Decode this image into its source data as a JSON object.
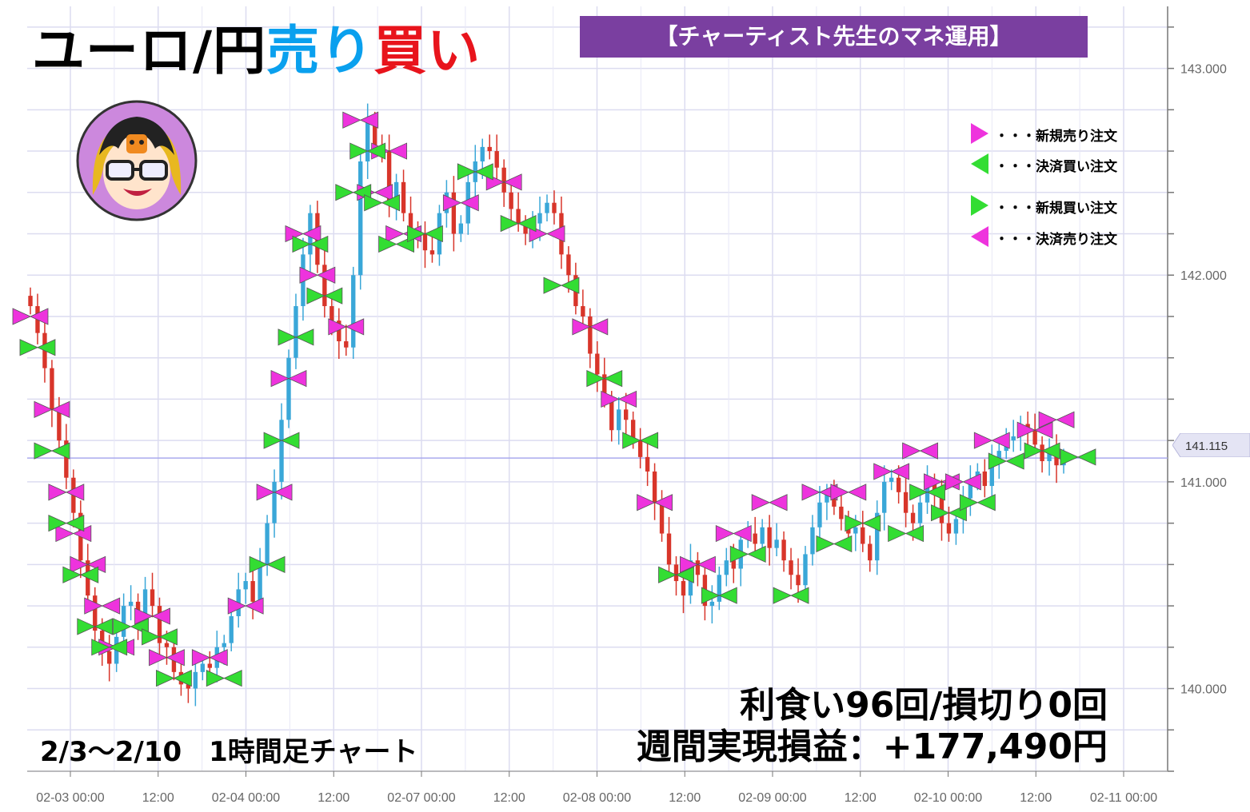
{
  "title": {
    "part1": "ユーロ/円",
    "part2": "売り",
    "part3": "買い"
  },
  "banner": "【チャーティスト先生のマネ運用】",
  "stats": {
    "line1": "利食い96回/損切り0回",
    "line2": "週間実現損益：+177,490円"
  },
  "period_label": "2/3～2/10　1時間足チャート",
  "legend": [
    {
      "label": "・・・新規売り注文",
      "marker": "right-triangle",
      "color": "#ee33dd"
    },
    {
      "label": "・・・決済買い注文",
      "marker": "left-triangle",
      "color": "#33dd33"
    },
    {
      "label": "・・・新規買い注文",
      "marker": "right-triangle",
      "color": "#33dd33"
    },
    {
      "label": "・・・決済売り注文",
      "marker": "left-triangle",
      "color": "#ee33dd"
    }
  ],
  "avatar": {
    "icon": "teacher-avatar-icon",
    "bg_color": "#cc88dd"
  },
  "colors": {
    "up": "#3aa7d8",
    "down": "#d8352a",
    "sell": "#ee33dd",
    "buy": "#33dd33",
    "current_line": "#aaaaee"
  },
  "chart_data": {
    "type": "candlestick",
    "xlabels": [
      "02-03 00:00",
      "12:00",
      "02-04 00:00",
      "12:00",
      "02-07 00:00",
      "12:00",
      "02-08 00:00",
      "12:00",
      "02-09 00:00",
      "12:00",
      "02-10 00:00",
      "12:00",
      "02-11 00:00"
    ],
    "ylabels": [
      "140.000",
      "141.000",
      "142.000",
      "143.000"
    ],
    "y_ticks": [
      140.0,
      141.0,
      142.0,
      143.0
    ],
    "ylim": [
      139.6,
      143.3
    ],
    "current_price": 141.115,
    "current_price_label": "141.115",
    "x_start_hour": 0,
    "x_end_hour": 150,
    "session_breaks": [
      {
        "label_index": 4,
        "note": "weekend gap after 02-04"
      }
    ],
    "closes": [
      141.85,
      141.72,
      141.55,
      141.35,
      141.2,
      141.02,
      140.85,
      140.62,
      140.45,
      140.28,
      140.18,
      140.12,
      140.25,
      140.4,
      140.42,
      140.32,
      140.48,
      140.4,
      140.22,
      140.2,
      140.08,
      140.02,
      140.0,
      140.08,
      140.12,
      140.1,
      140.2,
      140.22,
      140.35,
      140.48,
      140.52,
      140.42,
      140.6,
      140.8,
      141.0,
      141.3,
      141.6,
      141.85,
      142.1,
      142.3,
      142.05,
      141.85,
      141.78,
      141.68,
      141.65,
      142.0,
      142.55,
      142.75,
      142.62,
      142.6,
      142.35,
      142.45,
      142.3,
      142.22,
      142.2,
      142.12,
      142.1,
      142.3,
      142.4,
      142.2,
      142.25,
      142.45,
      142.55,
      142.62,
      142.6,
      142.52,
      142.4,
      142.32,
      142.25,
      142.2,
      142.25,
      142.3,
      142.35,
      142.3,
      142.1,
      142.0,
      141.85,
      141.8,
      141.62,
      141.52,
      141.4,
      141.25,
      141.35,
      141.3,
      141.2,
      141.12,
      141.05,
      140.9,
      140.75,
      140.6,
      140.52,
      140.45,
      140.62,
      140.55,
      140.4,
      140.42,
      140.55,
      140.62,
      140.58,
      140.72,
      140.75,
      140.7,
      140.78,
      140.68,
      140.72,
      140.62,
      140.55,
      140.5,
      140.65,
      140.78,
      140.9,
      140.95,
      140.88,
      140.82,
      140.75,
      140.78,
      140.7,
      140.62,
      140.85,
      141.0,
      141.02,
      140.95,
      140.85,
      140.8,
      140.9,
      141.0,
      140.95,
      140.8,
      140.75,
      140.82,
      140.92,
      141.0,
      141.05,
      140.98,
      141.1,
      141.15,
      141.2,
      141.22,
      141.28,
      141.25,
      141.18,
      141.1,
      141.15,
      141.08,
      141.12
    ],
    "sell_markers": [
      [
        0,
        141.8
      ],
      [
        3,
        141.35
      ],
      [
        5,
        140.95
      ],
      [
        6,
        140.75
      ],
      [
        8,
        140.6
      ],
      [
        10,
        140.4
      ],
      [
        12,
        140.2
      ],
      [
        17,
        140.35
      ],
      [
        19,
        140.15
      ],
      [
        25,
        140.15
      ],
      [
        30,
        140.4
      ],
      [
        34,
        140.95
      ],
      [
        36,
        141.5
      ],
      [
        38,
        142.2
      ],
      [
        40,
        142.0
      ],
      [
        44,
        141.75
      ],
      [
        46,
        142.75
      ],
      [
        48,
        142.4
      ],
      [
        50,
        142.6
      ],
      [
        52,
        142.2
      ],
      [
        60,
        142.35
      ],
      [
        66,
        142.45
      ],
      [
        72,
        142.2
      ],
      [
        78,
        141.75
      ],
      [
        82,
        141.4
      ],
      [
        87,
        140.9
      ],
      [
        93,
        140.6
      ],
      [
        98,
        140.75
      ],
      [
        103,
        140.9
      ],
      [
        110,
        140.95
      ],
      [
        114,
        140.95
      ],
      [
        120,
        141.05
      ],
      [
        124,
        141.15
      ],
      [
        127,
        141.0
      ],
      [
        130,
        141.0
      ],
      [
        134,
        141.2
      ],
      [
        140,
        141.25
      ],
      [
        143,
        141.3
      ]
    ],
    "buy_markers": [
      [
        1,
        141.65
      ],
      [
        3,
        141.15
      ],
      [
        5,
        140.8
      ],
      [
        7,
        140.55
      ],
      [
        9,
        140.3
      ],
      [
        11,
        140.2
      ],
      [
        14,
        140.3
      ],
      [
        18,
        140.25
      ],
      [
        20,
        140.05
      ],
      [
        27,
        140.05
      ],
      [
        33,
        140.6
      ],
      [
        35,
        141.2
      ],
      [
        37,
        141.7
      ],
      [
        39,
        142.15
      ],
      [
        41,
        141.9
      ],
      [
        45,
        142.4
      ],
      [
        47,
        142.6
      ],
      [
        49,
        142.35
      ],
      [
        51,
        142.15
      ],
      [
        55,
        142.2
      ],
      [
        62,
        142.5
      ],
      [
        68,
        142.25
      ],
      [
        74,
        141.95
      ],
      [
        80,
        141.5
      ],
      [
        85,
        141.2
      ],
      [
        90,
        140.55
      ],
      [
        96,
        140.45
      ],
      [
        100,
        140.65
      ],
      [
        106,
        140.45
      ],
      [
        112,
        140.7
      ],
      [
        116,
        140.8
      ],
      [
        122,
        140.75
      ],
      [
        125,
        140.95
      ],
      [
        128,
        140.85
      ],
      [
        132,
        140.9
      ],
      [
        136,
        141.1
      ],
      [
        141,
        141.15
      ],
      [
        146,
        141.12
      ]
    ]
  }
}
